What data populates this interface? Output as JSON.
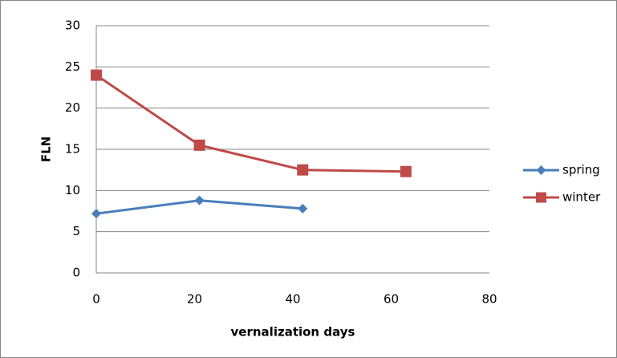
{
  "chart_data": {
    "type": "line",
    "title": "",
    "xlabel": "vernalization days",
    "ylabel": "FLN",
    "xlim": [
      0,
      80
    ],
    "ylim": [
      0,
      30
    ],
    "xticks": [
      "0",
      "20",
      "40",
      "60",
      "80"
    ],
    "yticks": [
      "0",
      "5",
      "10",
      "15",
      "20",
      "25",
      "30"
    ],
    "grid": "horizontal",
    "legend": "right",
    "series": [
      {
        "name": "spring",
        "color": "#4a7ebb",
        "marker": "diamond",
        "x": [
          0,
          21,
          42
        ],
        "y": [
          7.2,
          8.8,
          7.8
        ]
      },
      {
        "name": "winter",
        "color": "#be4b48",
        "marker": "square",
        "x": [
          0,
          21,
          42,
          63
        ],
        "y": [
          24.0,
          15.5,
          12.5,
          12.3
        ]
      }
    ]
  }
}
